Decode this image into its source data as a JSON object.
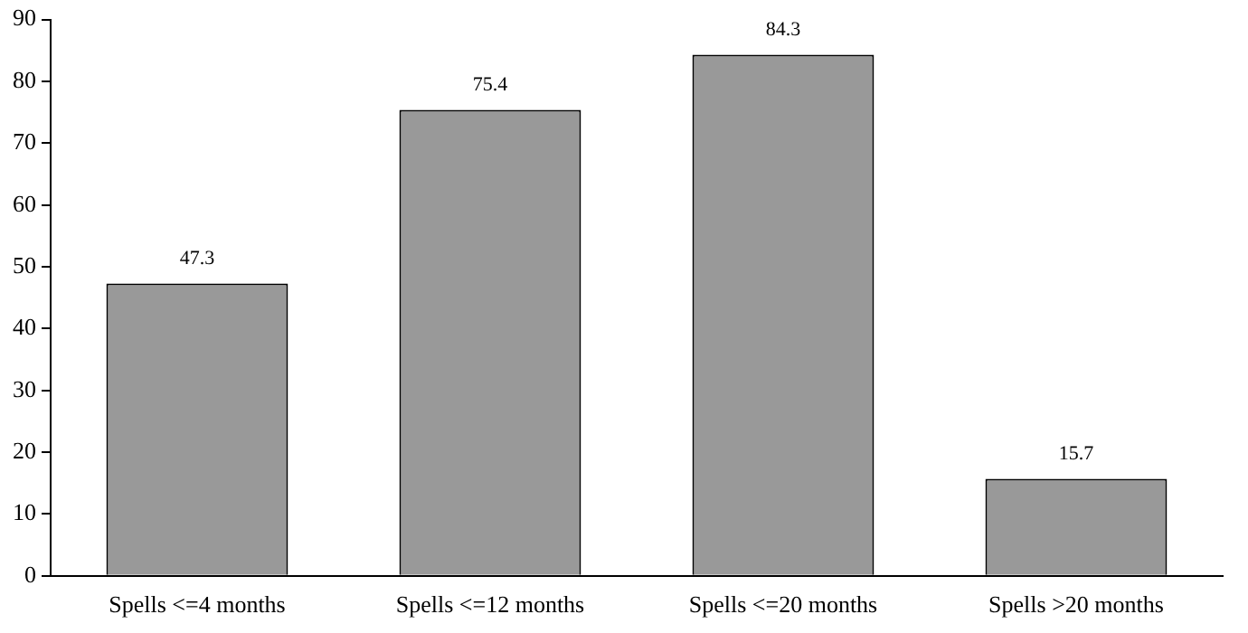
{
  "chart_data": {
    "type": "bar",
    "categories": [
      "Spells <=4 months",
      "Spells <=12 months",
      "Spells <=20 months",
      "Spells >20 months"
    ],
    "values": [
      47.3,
      75.4,
      84.3,
      15.7
    ],
    "color": "#999999",
    "ylim": [
      0,
      90
    ],
    "yticks": [
      0,
      10,
      20,
      30,
      40,
      50,
      60,
      70,
      80,
      90
    ],
    "grid": false,
    "data_labels": true
  }
}
